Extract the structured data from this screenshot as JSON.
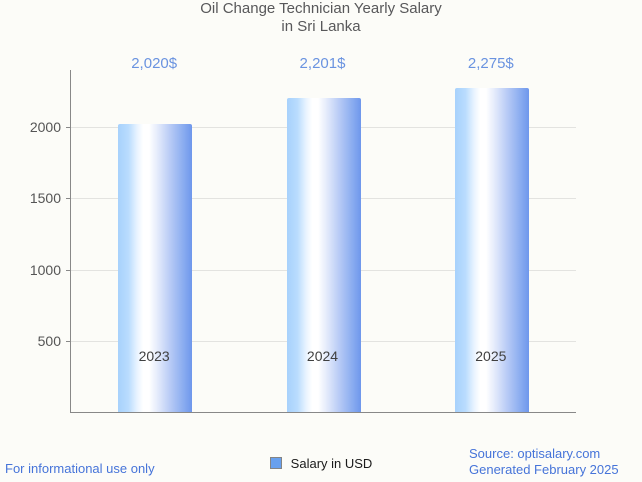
{
  "title": {
    "line1": "Oil Change Technician Yearly Salary",
    "line2": "in Sri Lanka"
  },
  "chart_data": {
    "type": "bar",
    "title": "Oil Change Technician Yearly Salary in Sri Lanka",
    "categories": [
      "2023",
      "2024",
      "2025"
    ],
    "values": [
      2020,
      2201,
      2275
    ],
    "annotations": [
      "2,020$",
      "2,201$",
      "2,275$"
    ],
    "xlabel": "",
    "ylabel": "",
    "ylim": [
      0,
      2400
    ],
    "yticks": [
      500,
      1000,
      1500,
      2000
    ],
    "grid": true,
    "legend_position": "bottom",
    "legend_label": "Salary in USD",
    "bar_gradient": [
      "#a7d1fc",
      "#ffffff",
      "#6e97ec"
    ]
  },
  "legend": {
    "label": "Salary in USD",
    "swatch_color": "#68a0ee"
  },
  "footer": {
    "left": "For informational use only",
    "source": "Source: optisalary.com",
    "generated": "Generated February 2025"
  },
  "colors": {
    "annotation_text": "#6a93e0",
    "footer_text": "#4674d9",
    "axis": "#888888",
    "gridline": "#e3e3e0",
    "title_text": "#58585a",
    "background": "#fcfcf8"
  }
}
